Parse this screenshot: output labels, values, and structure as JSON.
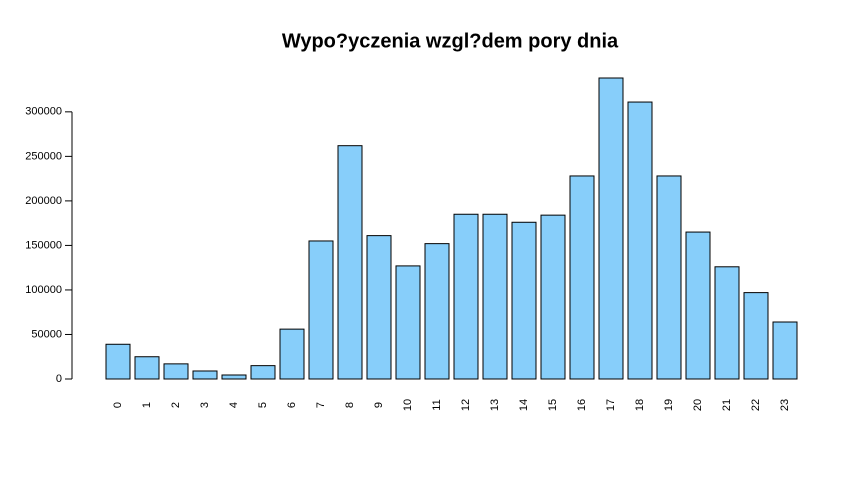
{
  "chart_data": {
    "type": "bar",
    "title": "Wypo?yczenia wzgl?dem pory dnia",
    "categories": [
      "0",
      "1",
      "2",
      "3",
      "4",
      "5",
      "6",
      "7",
      "8",
      "9",
      "10",
      "11",
      "12",
      "13",
      "14",
      "15",
      "16",
      "17",
      "18",
      "19",
      "20",
      "21",
      "22",
      "23"
    ],
    "values": [
      39000,
      25000,
      17000,
      9000,
      4500,
      15000,
      56000,
      155000,
      262000,
      161000,
      127000,
      152000,
      185000,
      185000,
      176000,
      184000,
      228000,
      338000,
      311000,
      228000,
      165000,
      126000,
      97000,
      64000
    ],
    "color": "#87cefa",
    "ylim": [
      0,
      338000
    ],
    "yticks": [
      0,
      50000,
      100000,
      150000,
      200000,
      250000,
      300000
    ],
    "grid": false
  }
}
